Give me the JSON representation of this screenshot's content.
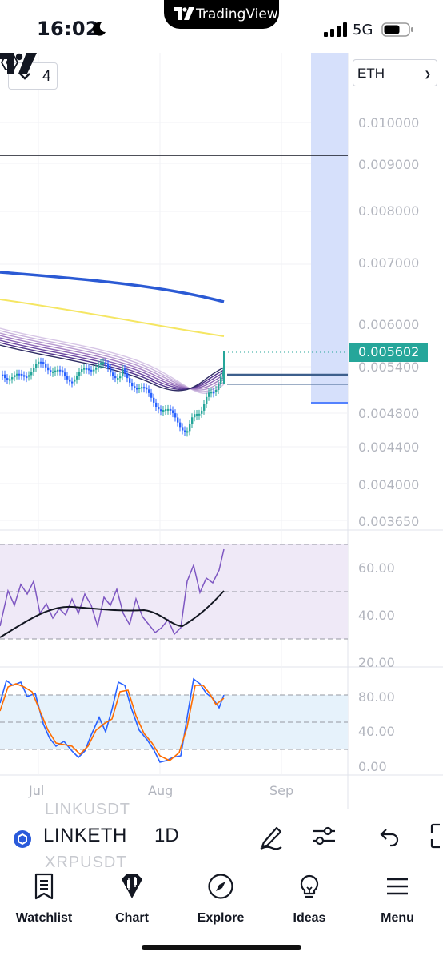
{
  "status_bar": {
    "time": "16:02",
    "app_name": "TradingView",
    "network": "5G",
    "icons": [
      "moon-icon",
      "signal-icon",
      "battery-icon"
    ]
  },
  "chart": {
    "interval_count": "4",
    "currency": "ETH",
    "price_axis": [
      "0.010000",
      "0.009000",
      "0.008000",
      "0.007000",
      "0.006000",
      "0.005400",
      "0.004800",
      "0.004400",
      "0.004000",
      "0.003650"
    ],
    "last_price": "0.005602",
    "rsi_axis": [
      "60.00",
      "40.00",
      "20.00"
    ],
    "stoch_axis": [
      "80.00",
      "40.00",
      "0.00"
    ],
    "time_axis": [
      "Jul",
      "Aug",
      "Sep"
    ],
    "colors": {
      "bull": "#26a69a",
      "bear": "#2962ff",
      "ma_blue": "#2b5ad4",
      "ma_yellow": "#f5e663",
      "rsi": "#7e57c2",
      "stoch_k": "#2962ff",
      "stoch_d": "#ff6d00",
      "highlight": "#d6e0fb"
    }
  },
  "symbols": {
    "above": "LINKUSDT",
    "current": "LINKETH",
    "interval": "1D",
    "below": "XRPUSDT"
  },
  "tabs": [
    {
      "label": "Watchlist",
      "icon": "watchlist-icon"
    },
    {
      "label": "Chart",
      "icon": "chart-icon"
    },
    {
      "label": "Explore",
      "icon": "compass-icon"
    },
    {
      "label": "Ideas",
      "icon": "lightbulb-icon"
    },
    {
      "label": "Menu",
      "icon": "menu-icon"
    }
  ]
}
